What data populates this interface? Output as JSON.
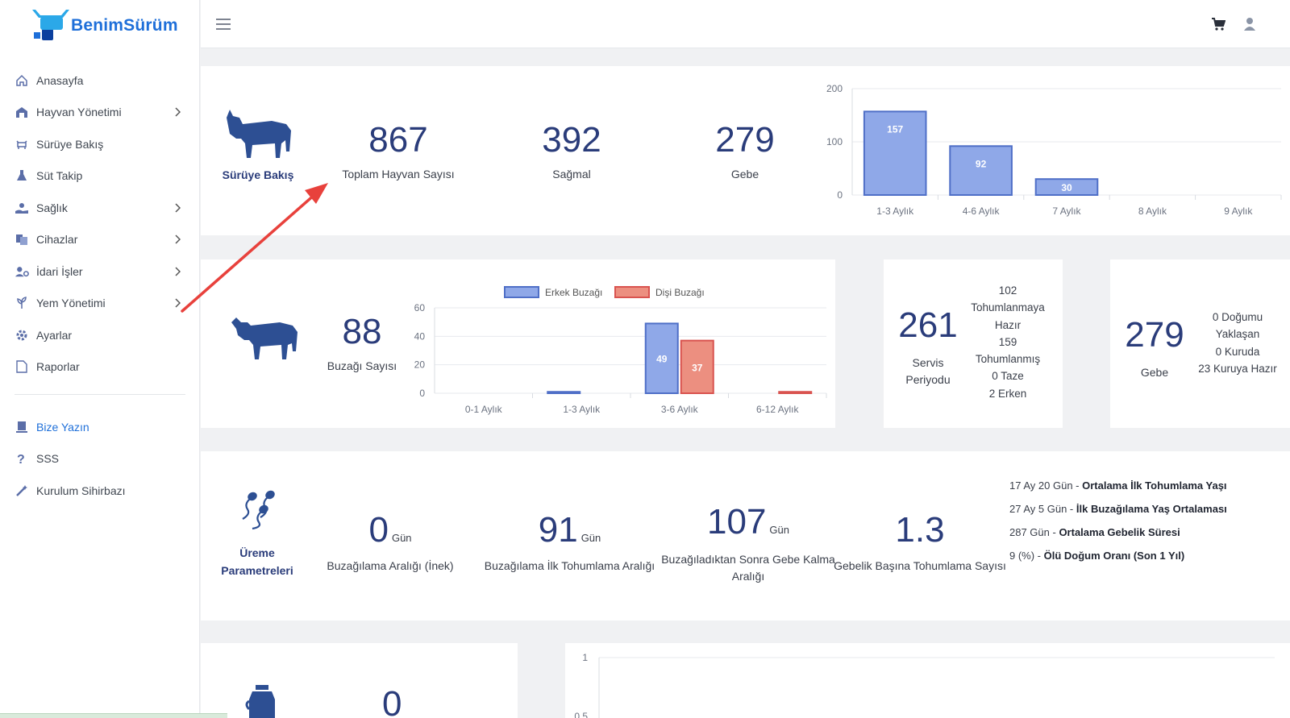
{
  "brand": {
    "name": "BenimSürüm",
    "accent": "#1e6fd9",
    "navy": "#2a3c7a"
  },
  "sidebar": {
    "items": [
      {
        "label": "Anasayfa",
        "icon": "home-icon",
        "chevron": false
      },
      {
        "label": "Hayvan Yönetimi",
        "icon": "barn-icon",
        "chevron": true
      },
      {
        "label": "Sürüye Bakış",
        "icon": "herd-icon",
        "chevron": false
      },
      {
        "label": "Süt Takip",
        "icon": "flask-icon",
        "chevron": false
      },
      {
        "label": "Sağlık",
        "icon": "health-hand-icon",
        "chevron": true
      },
      {
        "label": "Cihazlar",
        "icon": "devices-icon",
        "chevron": true
      },
      {
        "label": "İdari İşler",
        "icon": "user-gear-icon",
        "chevron": true
      },
      {
        "label": "Yem Yönetimi",
        "icon": "leaf-icon",
        "chevron": true
      },
      {
        "label": "Ayarlar",
        "icon": "gear-icon",
        "chevron": false
      },
      {
        "label": "Raporlar",
        "icon": "document-icon",
        "chevron": false
      }
    ],
    "secondary": [
      {
        "label": "Bize Yazın",
        "icon": "pen-icon"
      },
      {
        "label": "SSS",
        "icon": "question-icon"
      },
      {
        "label": "Kurulum Sihirbazı",
        "icon": "magic-wand-icon"
      }
    ]
  },
  "overview": {
    "caption": "Sürüye Bakış",
    "stats": [
      {
        "value": "867",
        "label": "Toplam Hayvan Sayısı"
      },
      {
        "value": "392",
        "label": "Sağmal"
      },
      {
        "value": "279",
        "label": "Gebe"
      }
    ]
  },
  "pregnancy_chart": {
    "chart_data": {
      "type": "bar",
      "categories": [
        "1-3 Aylık",
        "4-6 Aylık",
        "7 Aylık",
        "8 Aylık",
        "9 Aylık"
      ],
      "values": [
        157,
        92,
        30,
        0,
        0
      ],
      "ylim": [
        0,
        200
      ],
      "yticks": [
        "0",
        "100",
        "200"
      ],
      "bar_color": "#8fa8e8",
      "grid": true
    }
  },
  "calves": {
    "value": "88",
    "label": "Buzağı Sayısı",
    "chart_data": {
      "type": "bar",
      "categories": [
        "0-1 Aylık",
        "1-3 Aylık",
        "3-6 Aylık",
        "6-12 Aylık"
      ],
      "series": [
        {
          "name": "Erkek Buzağı",
          "values": [
            0,
            1,
            49,
            0
          ],
          "color": "#8fa8e8"
        },
        {
          "name": "Dişi Buzağı",
          "values": [
            0,
            0,
            37,
            1
          ],
          "color": "#ec8f80"
        }
      ],
      "ylim": [
        0,
        60
      ],
      "yticks": [
        "0",
        "20",
        "40",
        "60"
      ],
      "legend": "top"
    }
  },
  "service": {
    "value": "261",
    "label_line1": "Servis",
    "label_line2": "Periyodu",
    "lines": [
      "102",
      "Tohumlanmaya",
      "Hazır",
      "159",
      "Tohumlanmış",
      "0 Taze",
      "2 Erken"
    ]
  },
  "pregnant": {
    "value": "279",
    "label": "Gebe",
    "lines": [
      "0 Doğumu",
      "Yaklaşan",
      "0 Kuruda",
      "23 Kuruya Hazır"
    ]
  },
  "reproduction": {
    "caption_line1": "Üreme",
    "caption_line2": "Parametreleri",
    "stats": [
      {
        "value": "0",
        "unit": "Gün",
        "label": "Buzağılama Aralığı (İnek)"
      },
      {
        "value": "91",
        "unit": "Gün",
        "label": "Buzağılama İlk Tohumlama Aralığı"
      },
      {
        "value": "107",
        "unit": "Gün",
        "label_line1": "Buzağıladıktan Sonra Gebe Kalma",
        "label_line2": "Aralığı"
      },
      {
        "value": "1.3",
        "unit": "",
        "label": "Gebelik Başına Tohumlama Sayısı"
      }
    ],
    "info": [
      {
        "value": "17 Ay 20 Gün - ",
        "bold": "Ortalama İlk Tohumlama Yaşı"
      },
      {
        "value": "27 Ay 5 Gün - ",
        "bold": "İlk Buzağılama Yaş Ortalaması"
      },
      {
        "value": "287 Gün - ",
        "bold": "Ortalama Gebelik Süresi"
      },
      {
        "value": "9 (%) - ",
        "bold": "Ölü Doğum Oranı (Son 1 Yıl)"
      }
    ]
  },
  "milk": {
    "value": "0",
    "chart_ytick_top": "1",
    "chart_ytick_next": "0.5"
  }
}
